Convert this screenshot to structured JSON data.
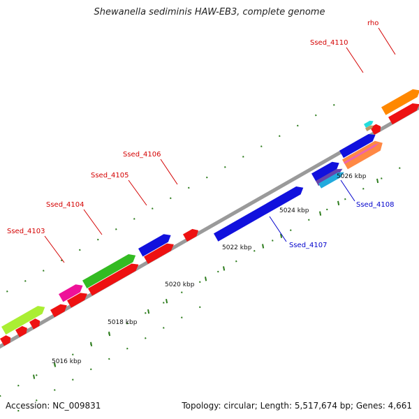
{
  "title": "Shewanella sediminis HAW-EB3, complete genome",
  "footer": {
    "accession": "Accession: NC_009831",
    "summary": "Topology: circular; Length: 5,517,674 bp; Genes: 4,661"
  },
  "colors": {
    "backbone": "#9a9a9a",
    "tick": "#2e7d1e",
    "top_label": "#d40000",
    "bottom_label": "#0000cc"
  },
  "ruler": [
    {
      "label": "5016 kbp"
    },
    {
      "label": "5018 kbp"
    },
    {
      "label": "5020 kbp"
    },
    {
      "label": "5022 kbp"
    },
    {
      "label": "5024 kbp"
    },
    {
      "label": "5026 kbp"
    }
  ],
  "gene_labels": [
    {
      "id": "Ssed_4103",
      "strand": "top"
    },
    {
      "id": "Ssed_4104",
      "strand": "top"
    },
    {
      "id": "Ssed_4105",
      "strand": "top"
    },
    {
      "id": "Ssed_4106",
      "strand": "top"
    },
    {
      "id": "Ssed_4110",
      "strand": "top"
    },
    {
      "id": "rho",
      "strand": "top"
    },
    {
      "id": "Ssed_4107",
      "strand": "bottom"
    },
    {
      "id": "Ssed_4108",
      "strand": "bottom"
    }
  ]
}
